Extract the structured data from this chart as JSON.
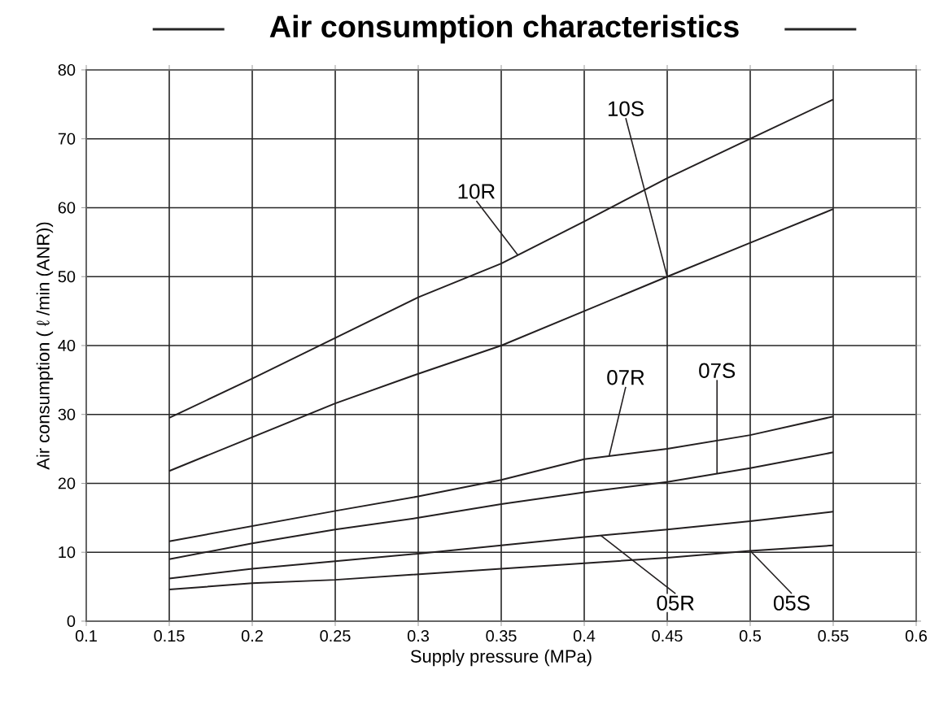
{
  "chart_data": {
    "type": "line",
    "title": "Air consumption characteristics",
    "xlabel": "Supply pressure (MPa)",
    "ylabel": "Air consumption ( ℓ /min (ANR))",
    "x": [
      0.15,
      0.2,
      0.25,
      0.3,
      0.35,
      0.4,
      0.45,
      0.5,
      0.55
    ],
    "series": [
      {
        "name": "10R",
        "color": "#231f20",
        "values": [
          29.5,
          35.2,
          41.1,
          47,
          51.9,
          58,
          64.3,
          70,
          75.7
        ]
      },
      {
        "name": "10S",
        "color": "#231f20",
        "values": [
          21.8,
          26.7,
          31.6,
          35.9,
          40,
          45,
          50,
          54.9,
          59.8
        ]
      },
      {
        "name": "07R",
        "color": "#231f20",
        "values": [
          11.6,
          13.8,
          16,
          18.1,
          20.5,
          23.5,
          25,
          27,
          29.7
        ]
      },
      {
        "name": "07S",
        "color": "#231f20",
        "values": [
          9,
          11.3,
          13.3,
          15,
          17,
          18.7,
          20.2,
          22.2,
          24.5
        ]
      },
      {
        "name": "05R",
        "color": "#231f20",
        "values": [
          6.2,
          7.6,
          8.7,
          9.8,
          11,
          12.2,
          13.3,
          14.5,
          15.9
        ]
      },
      {
        "name": "05S",
        "color": "#231f20",
        "values": [
          4.6,
          5.5,
          6,
          6.8,
          7.6,
          8.4,
          9.2,
          10.2,
          11
        ]
      }
    ],
    "xlim": [
      0.1,
      0.6
    ],
    "xticks": [
      0.1,
      0.15,
      0.2,
      0.25,
      0.3,
      0.35,
      0.4,
      0.45,
      0.5,
      0.55,
      0.6
    ],
    "ylim": [
      0,
      80
    ],
    "yticks": [
      0,
      10,
      20,
      30,
      40,
      50,
      60,
      70,
      80
    ],
    "grid": true,
    "marker": "none",
    "line_style": "solid"
  }
}
